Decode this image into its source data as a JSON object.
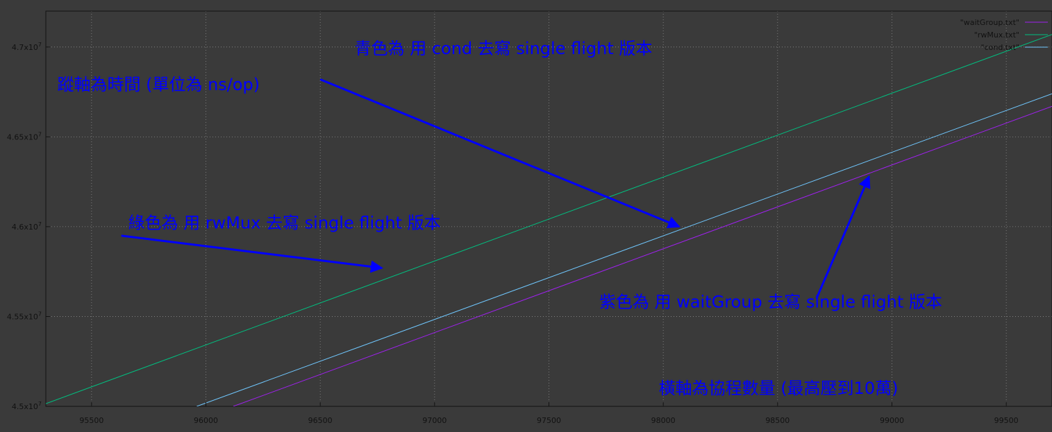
{
  "chart_data": {
    "type": "line",
    "title": "",
    "xlabel": "",
    "ylabel": "",
    "xlim": [
      95300,
      99700
    ],
    "ylim": [
      45000000,
      47200000
    ],
    "x_ticks": [
      95500,
      96000,
      96500,
      97000,
      97500,
      98000,
      98500,
      99000,
      99500
    ],
    "x_tick_labels": [
      "95500",
      "96000",
      "96500",
      "97000",
      "97500",
      "98000",
      "98500",
      "99000",
      "99500"
    ],
    "y_ticks": [
      45000000,
      45500000,
      46000000,
      46500000,
      47000000
    ],
    "y_tick_labels": [
      {
        "mantissa": "4.5",
        "exp": "7"
      },
      {
        "mantissa": "4.55",
        "exp": "7"
      },
      {
        "mantissa": "4.6",
        "exp": "7"
      },
      {
        "mantissa": "4.65",
        "exp": "7"
      },
      {
        "mantissa": "4.7",
        "exp": "7"
      }
    ],
    "grid": true,
    "legend_position": "top-right",
    "series": [
      {
        "name": "\"waitGroup.txt\"",
        "color": "#a020f0",
        "x": [
          96120,
          99700
        ],
        "y": [
          45000000,
          46670000
        ]
      },
      {
        "name": "\"rwMux.txt\"",
        "color": "#00c080",
        "x": [
          95300,
          99700
        ],
        "y": [
          45015000,
          47070000
        ]
      },
      {
        "name": "\"cond.txt\"",
        "color": "#70c8ff",
        "x": [
          95960,
          99700
        ],
        "y": [
          45000000,
          46740000
        ]
      }
    ],
    "annotations": [
      {
        "text": "青色為 用 cond 去寫 single flight 版本",
        "at": [
          96650,
          46960000
        ],
        "arrow_from": [
          96500,
          46820000
        ],
        "arrow_to": [
          98070,
          46000000
        ]
      },
      {
        "text": "蹤軸為時間 (單位為 ns/op)",
        "at": [
          95350,
          46760000
        ]
      },
      {
        "text": "綠色為 用 rwMux 去寫 single flight 版本",
        "at": [
          95660,
          45990000
        ],
        "arrow_from": [
          95630,
          45950000
        ],
        "arrow_to": [
          96770,
          45770000
        ]
      },
      {
        "text": "紫色為 用 waitGroup 去寫 single flight 版本",
        "at": [
          97720,
          45550000
        ],
        "arrow_from": [
          98670,
          45600000
        ],
        "arrow_to": [
          98900,
          46280000
        ]
      },
      {
        "text": "橫軸為協程數量 (最高壓到10萬)",
        "at": [
          97980,
          45070000
        ]
      }
    ]
  }
}
